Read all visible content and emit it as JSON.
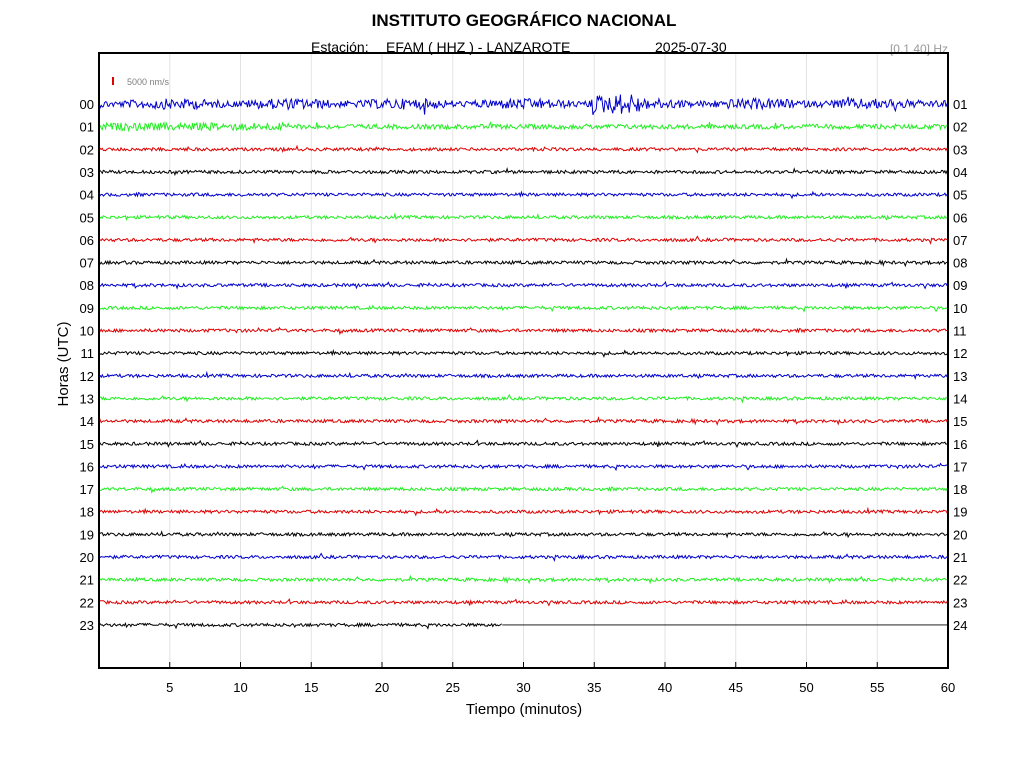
{
  "chart_data": {
    "type": "line",
    "title": "INSTITUTO GEOGRÁFICO NACIONAL",
    "station_label": "Estación:",
    "station": "EFAM ( HHZ ) - LANZAROTE",
    "date": "2025-07-30",
    "filter": "[0.1 40] Hz",
    "xlabel": "Tiempo (minutos)",
    "ylabel": "Horas (UTC)",
    "xlim": [
      0,
      60
    ],
    "x_ticks": [
      5,
      10,
      15,
      20,
      25,
      30,
      35,
      40,
      45,
      50,
      55,
      60
    ],
    "left_hour_labels": [
      "00",
      "01",
      "02",
      "03",
      "04",
      "05",
      "06",
      "07",
      "08",
      "09",
      "10",
      "11",
      "12",
      "13",
      "14",
      "15",
      "16",
      "17",
      "18",
      "19",
      "20",
      "21",
      "22",
      "23"
    ],
    "right_hour_labels": [
      "01",
      "02",
      "03",
      "04",
      "05",
      "06",
      "07",
      "08",
      "09",
      "10",
      "11",
      "12",
      "13",
      "14",
      "15",
      "16",
      "17",
      "18",
      "19",
      "20",
      "21",
      "22",
      "23",
      "24"
    ],
    "scale_bar": {
      "label": "5000 nm/s",
      "color": "#e00000"
    },
    "trace_colors": [
      "#0000cc",
      "#22ee22",
      "#dd0000",
      "#000000"
    ],
    "last_trace_end_minute": 28.5,
    "grid": true
  }
}
